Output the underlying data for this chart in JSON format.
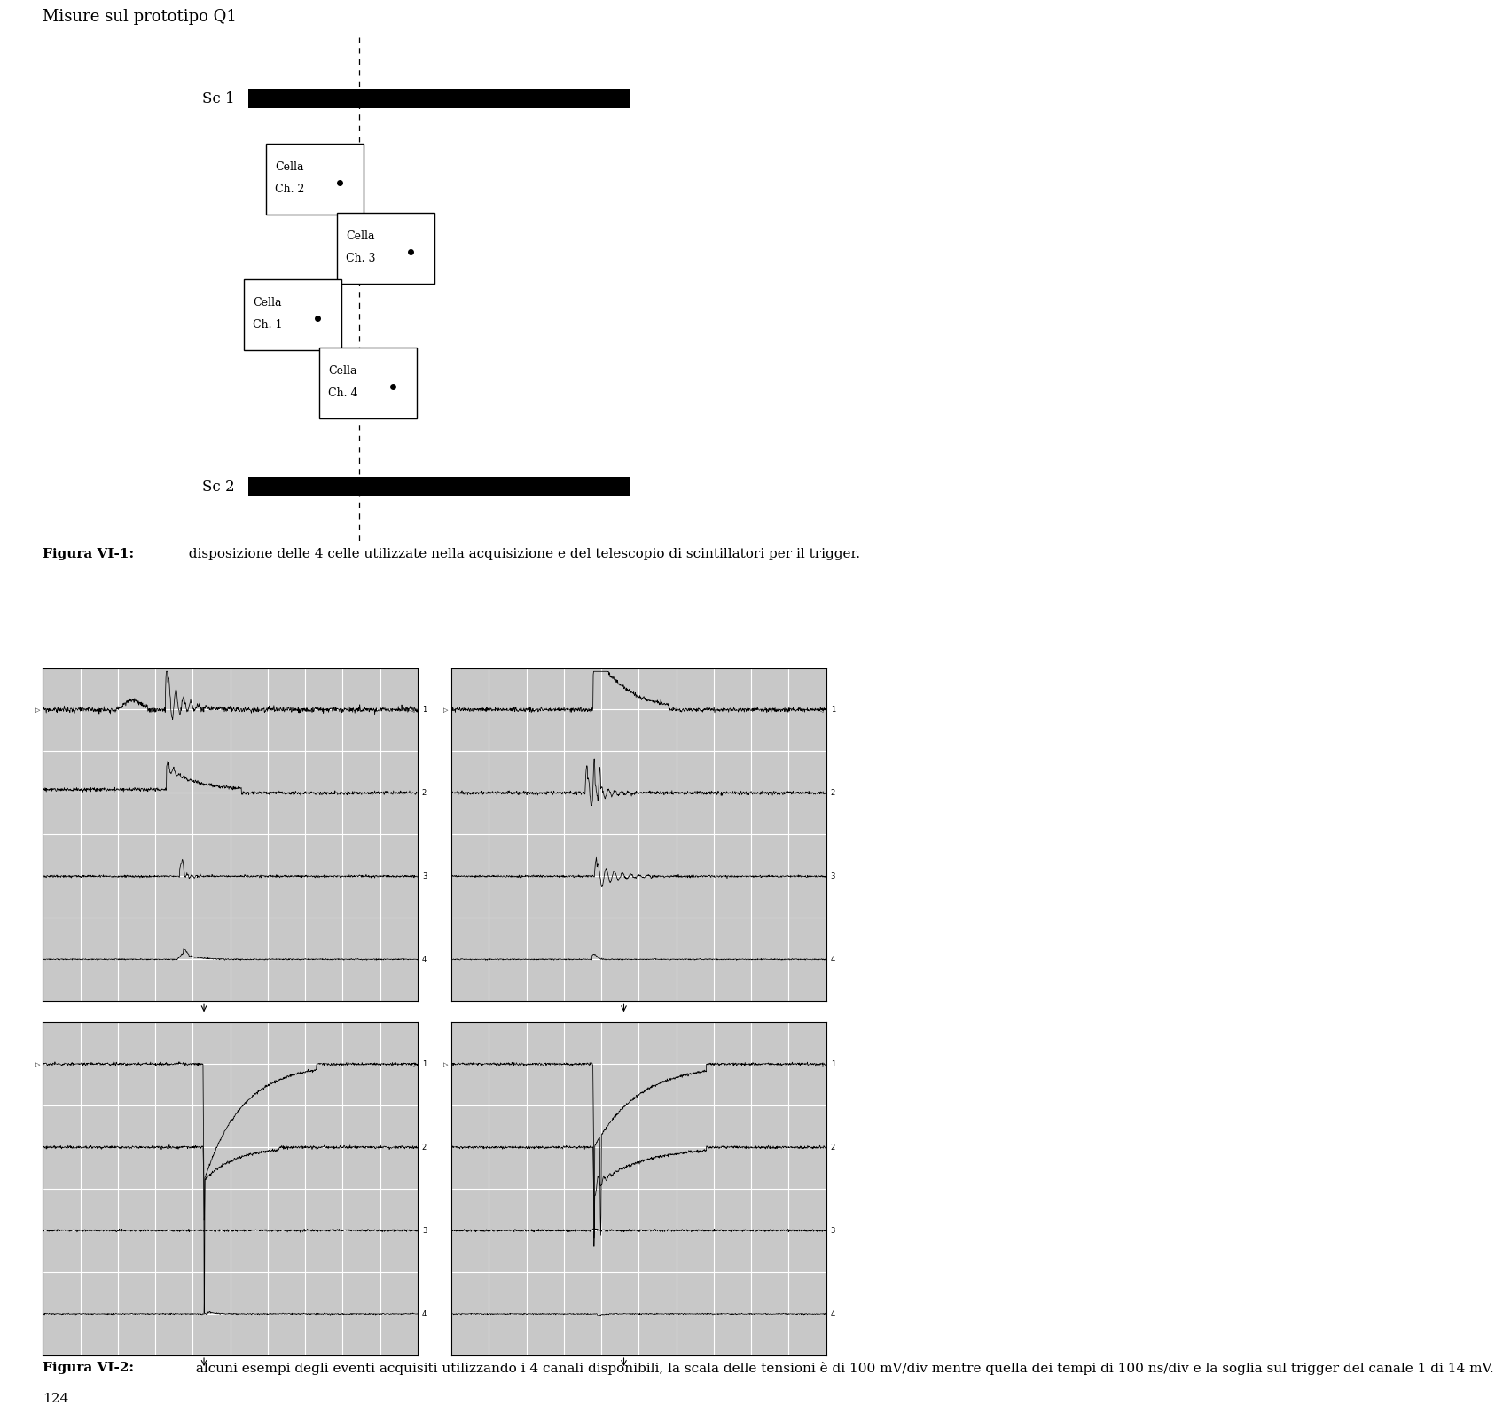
{
  "title": "Misure sul prototipo Q1",
  "fig_caption1_bold": "Figura VI-1:",
  "fig_caption1_rest": "  disposizione delle 4 celle utilizzate nella acquisizione e del telescopio di scintillatori per il trigger.",
  "fig_caption2_bold": "Figura VI-2:",
  "fig_caption2_rest": " alcuni esempi degli eventi acquisiti utilizzando i 4 canali disponibili, la scala delle tensioni è di 100 mV/div mentre quella dei tempi di 100 ns/div e la soglia sul trigger del canale 1 di 14 mV.",
  "sc1_label": "Sc 1",
  "sc2_label": "Sc 2",
  "page_number": "124",
  "background_color": "#ffffff",
  "osc_bg_color": "#c8c8c8",
  "grid_color": "#ffffff",
  "grid_minor_color": "#b0b0b0"
}
